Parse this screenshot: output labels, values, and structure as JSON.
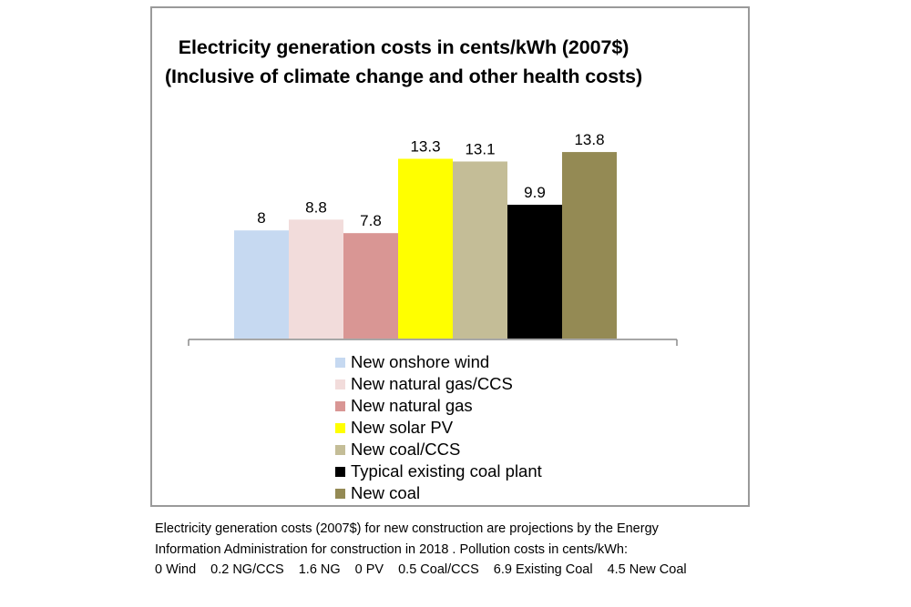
{
  "chart_data": {
    "type": "bar",
    "title": [
      "Electricity generation costs in cents/kWh (2007$)",
      "(Inclusive of climate change and other health costs)"
    ],
    "xlabel": "",
    "ylabel": "",
    "ylim": [
      0,
      16
    ],
    "grid": false,
    "legend_position": "bottom",
    "categories": [
      "New onshore wind",
      "New natural gas/CCS",
      "New natural gas",
      "New solar PV",
      "New coal/CCS",
      "Typical existing coal plant",
      "New coal"
    ],
    "values": [
      8,
      8.8,
      7.8,
      13.3,
      13.1,
      9.9,
      13.8
    ],
    "value_labels": [
      "8",
      "8.8",
      "7.8",
      "13.3",
      "13.1",
      "9.9",
      "13.8"
    ],
    "colors": [
      "#c6d9f1",
      "#f2dcdb",
      "#d99694",
      "#ffff00",
      "#c4bd97",
      "#000000",
      "#948a54"
    ]
  },
  "caption": {
    "line1": "Electricity generation costs (2007$) for new construction are projections by the Energy",
    "line2": "Information Administration for construction in 2018 . Pollution costs in cents/kWh:",
    "pollution_costs": [
      "0 Wind",
      "0.2 NG/CCS",
      "1.6 NG",
      "0 PV",
      "0.5 Coal/CCS",
      "6.9 Existing Coal",
      "4.5 New Coal"
    ]
  }
}
